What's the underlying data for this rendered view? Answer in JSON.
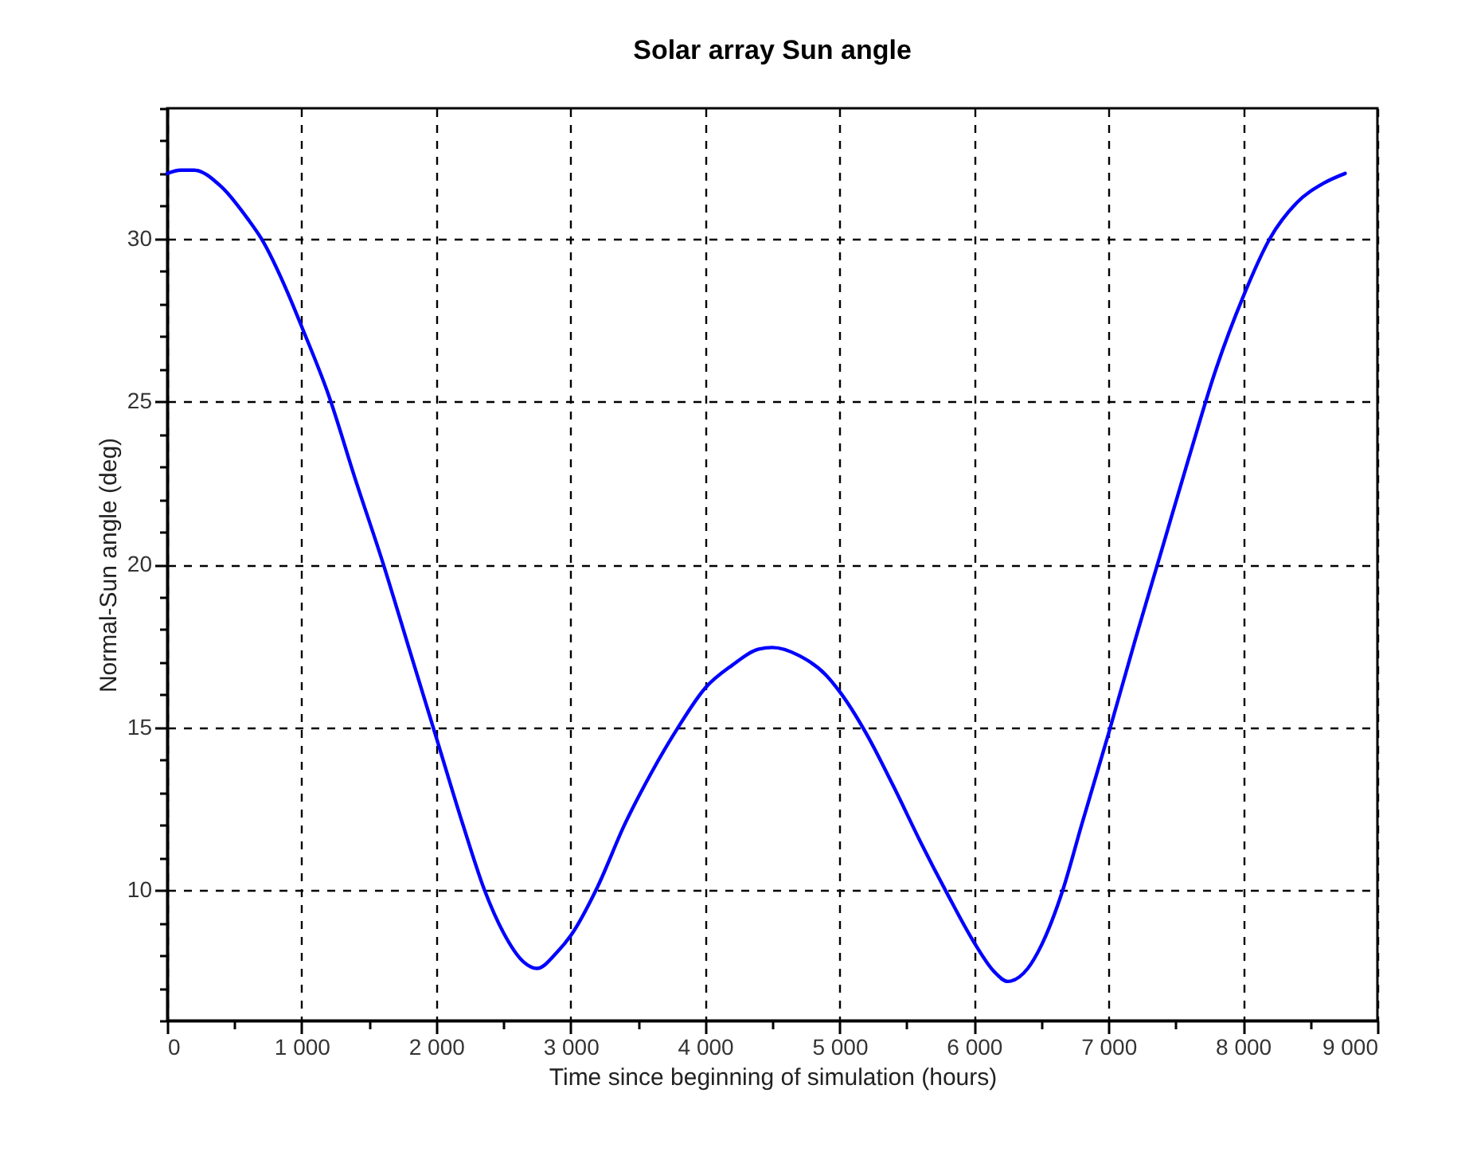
{
  "chart_data": {
    "type": "line",
    "title": "Solar array Sun angle",
    "xlabel": "Time since beginning of simulation (hours)",
    "ylabel": "Normal-Sun angle (deg)",
    "x": [
      0,
      100,
      200,
      400,
      600,
      700,
      900,
      1000,
      1200,
      1400,
      1600,
      1800,
      2000,
      2200,
      2360,
      2500,
      2650,
      2750,
      2900,
      3000,
      3200,
      3400,
      3600,
      3800,
      4000,
      4200,
      4400,
      4500,
      4700,
      4900,
      5000,
      5200,
      5400,
      5600,
      5800,
      6000,
      6150,
      6250,
      6400,
      6500,
      6660,
      6800,
      7000,
      7200,
      7400,
      7600,
      7800,
      8000,
      8200,
      8400,
      8600,
      8760
    ],
    "series": [
      {
        "color": "#0000ff",
        "values": [
          32.0,
          32.1,
          32.1,
          31.6,
          30.6,
          30.0,
          28.3,
          27.3,
          25.2,
          22.6,
          20.1,
          17.4,
          14.7,
          12.0,
          10.0,
          8.7,
          7.8,
          7.6,
          8.1,
          8.6,
          10.1,
          12.0,
          13.6,
          15.0,
          16.2,
          16.9,
          17.4,
          17.45,
          17.2,
          16.6,
          16.1,
          14.8,
          13.2,
          11.5,
          9.9,
          8.4,
          7.5,
          7.2,
          7.6,
          8.3,
          10.0,
          12.0,
          14.8,
          17.7,
          20.5,
          23.3,
          26.0,
          28.2,
          30.0,
          31.1,
          31.7,
          32.0
        ]
      }
    ],
    "xlim": [
      0,
      9000
    ],
    "ylim": [
      6,
      34
    ],
    "xticks": [
      0,
      {
        "value": 500,
        "label": null
      },
      {
        "value": 1000,
        "label": "1 000"
      },
      {
        "value": 1500,
        "label": null
      },
      {
        "value": 2000,
        "label": "2 000"
      },
      {
        "value": 2500,
        "label": null
      },
      {
        "value": 3000,
        "label": "3 000"
      },
      {
        "value": 3500,
        "label": null
      },
      {
        "value": 4000,
        "label": "4 000"
      },
      {
        "value": 4500,
        "label": null
      },
      {
        "value": 5000,
        "label": "5 000"
      },
      {
        "value": 5500,
        "label": null
      },
      {
        "value": 6000,
        "label": "6 000"
      },
      {
        "value": 6500,
        "label": null
      },
      {
        "value": 7000,
        "label": "7 000"
      },
      {
        "value": 7500,
        "label": null
      },
      {
        "value": 8000,
        "label": "8 000"
      },
      {
        "value": 8500,
        "label": null
      },
      {
        "value": 9000,
        "label": "9 000"
      }
    ],
    "yticks": [
      {
        "value": 6,
        "label": null
      },
      {
        "value": 7,
        "label": null
      },
      {
        "value": 8,
        "label": null
      },
      {
        "value": 9,
        "label": null
      },
      10,
      {
        "value": 11,
        "label": null
      },
      {
        "value": 12,
        "label": null
      },
      {
        "value": 13,
        "label": null
      },
      {
        "value": 14,
        "label": null
      },
      15,
      {
        "value": 16,
        "label": null
      },
      {
        "value": 17,
        "label": null
      },
      {
        "value": 18,
        "label": null
      },
      {
        "value": 19,
        "label": null
      },
      20,
      {
        "value": 21,
        "label": null
      },
      {
        "value": 22,
        "label": null
      },
      {
        "value": 23,
        "label": null
      },
      {
        "value": 24,
        "label": null
      },
      25,
      {
        "value": 26,
        "label": null
      },
      {
        "value": 27,
        "label": null
      },
      {
        "value": 28,
        "label": null
      },
      {
        "value": 29,
        "label": null
      },
      30,
      {
        "value": 31,
        "label": null
      },
      {
        "value": 32,
        "label": null
      },
      {
        "value": 33,
        "label": null
      },
      {
        "value": 34,
        "label": null
      }
    ],
    "grid": true
  }
}
